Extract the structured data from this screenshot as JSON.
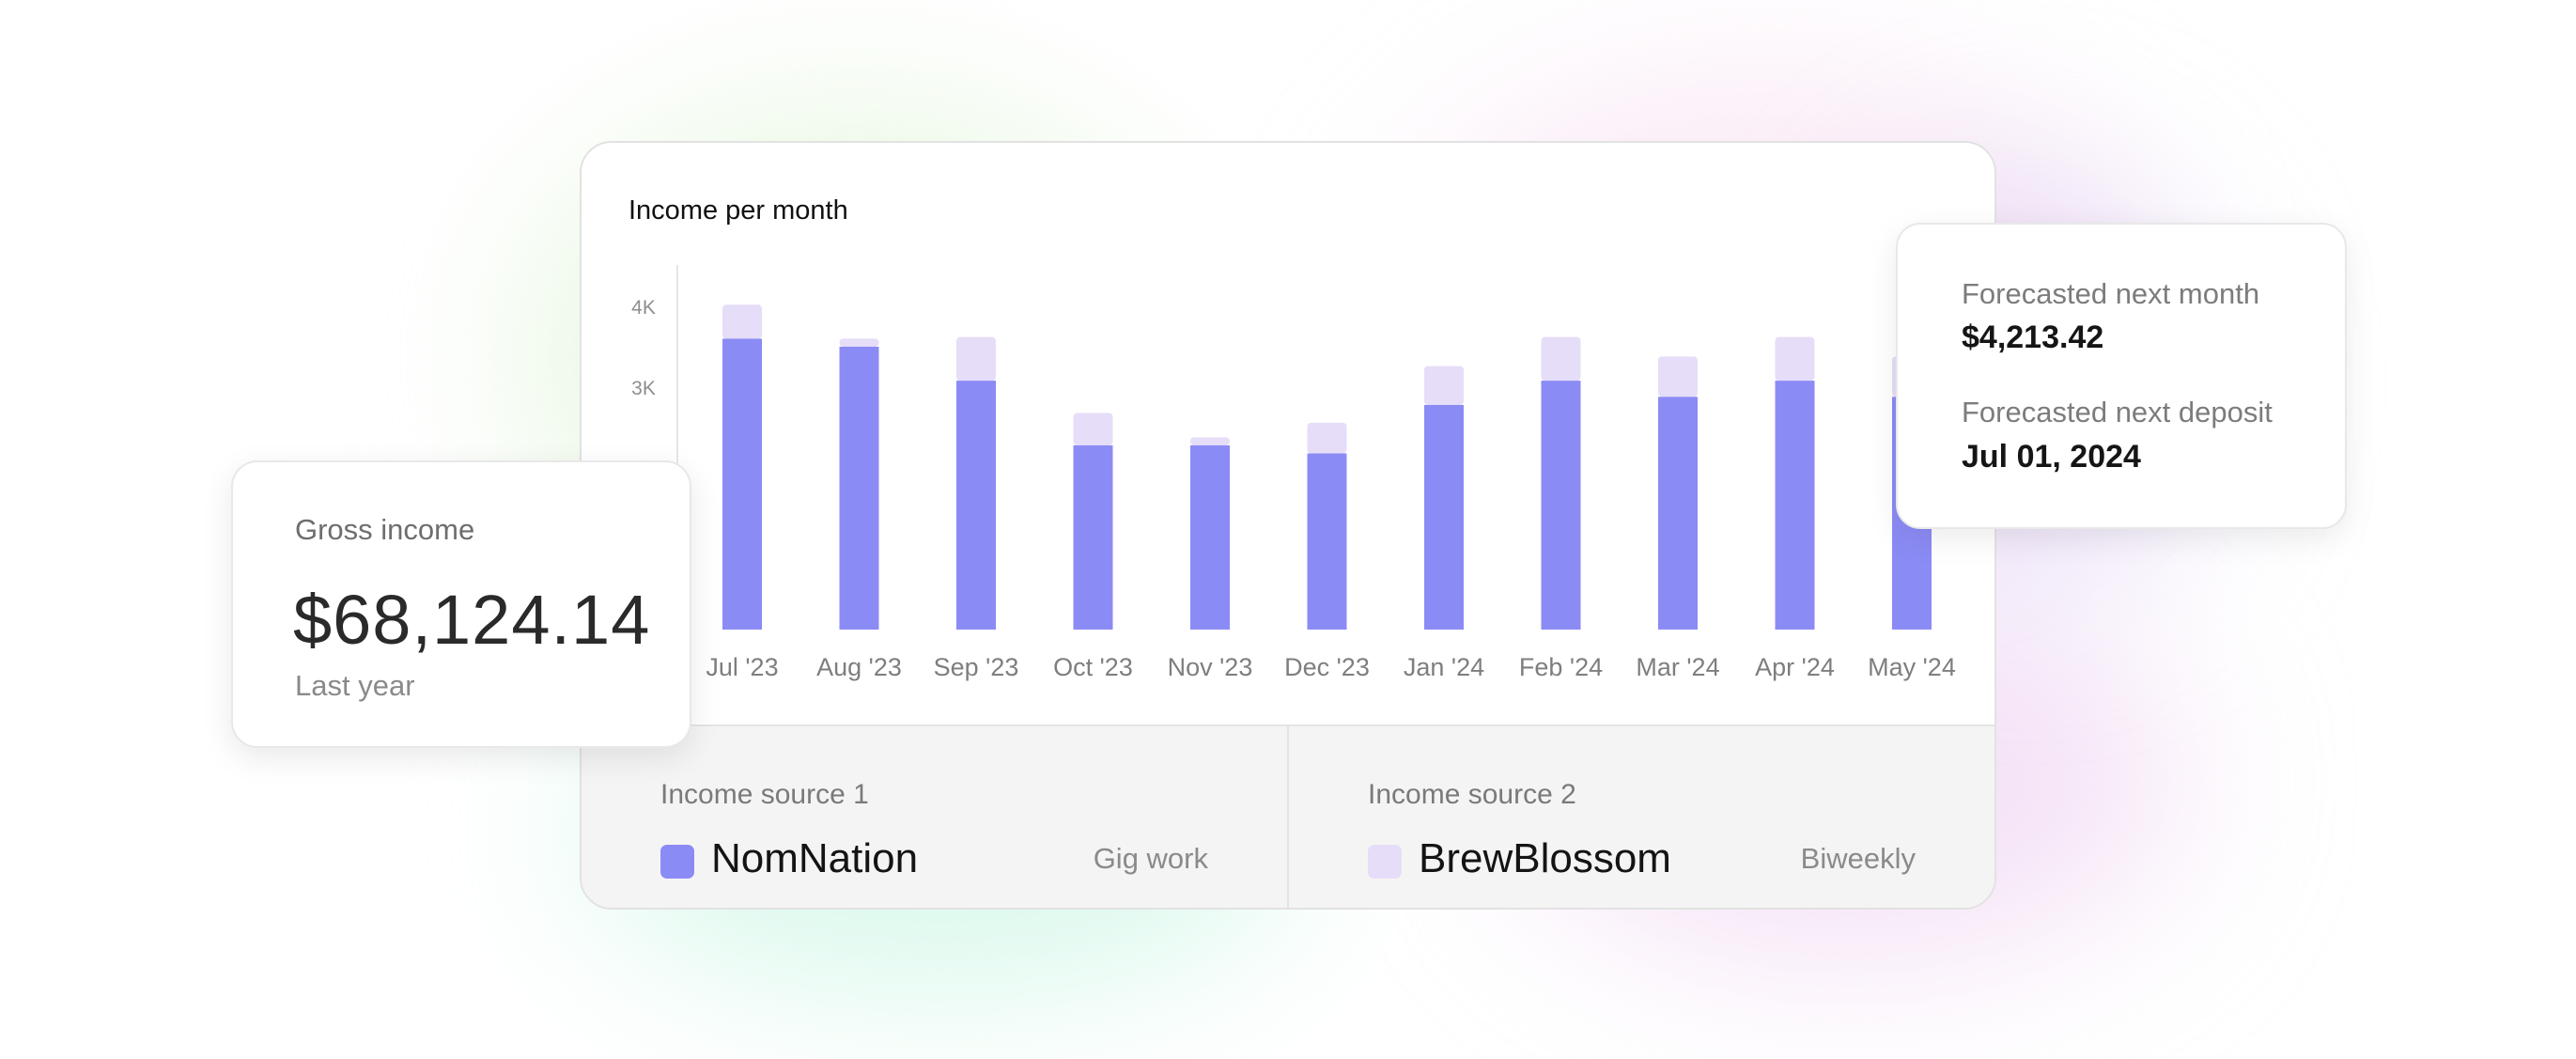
{
  "chart_data": {
    "type": "bar",
    "title": "Income per month",
    "categories": [
      "Jul '23",
      "Aug '23",
      "Sep '23",
      "Oct '23",
      "Nov '23",
      "Dec '23",
      "Jan '24",
      "Feb '24",
      "Mar '24",
      "Apr '24",
      "May '24"
    ],
    "series": [
      {
        "name": "NomNation",
        "values": [
          3600,
          3500,
          3080,
          2280,
          2280,
          2180,
          2780,
          3080,
          2880,
          3080,
          2880
        ]
      },
      {
        "name": "BrewBlossom",
        "values": [
          420,
          100,
          540,
          400,
          100,
          380,
          480,
          540,
          500,
          540,
          500
        ]
      }
    ],
    "stacked": true,
    "ytick_labels": [
      "3K",
      "4K"
    ],
    "ylim": [
      0,
      4550
    ],
    "colors": {
      "NomNation": "#8b8bf5",
      "BrewBlossom": "#e6ddf8"
    },
    "grid": false,
    "legend": "below"
  },
  "gross_income": {
    "title": "Gross income",
    "value": "$68,124.14",
    "period": "Last year"
  },
  "forecast": {
    "next_month_label": "Forecasted next month",
    "next_month_value": "$4,213.42",
    "next_deposit_label": "Forecasted next deposit",
    "next_deposit_value": "Jul 01, 2024"
  },
  "sources": [
    {
      "caption": "Income source 1",
      "name": "NomNation",
      "type": "Gig work",
      "color": "#8b8bf5"
    },
    {
      "caption": "Income source 2",
      "name": "BrewBlossom",
      "type": "Biweekly",
      "color": "#e6ddf8"
    }
  ]
}
